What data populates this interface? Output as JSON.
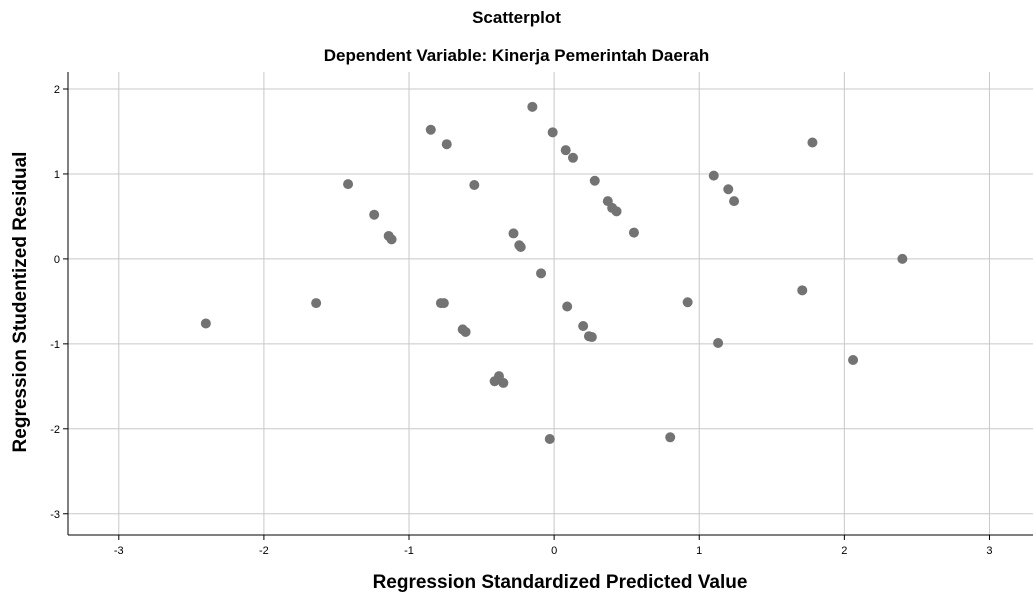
{
  "chart_data": {
    "type": "scatter",
    "title": "Scatterplot",
    "subtitle": "Dependent Variable: Kinerja Pemerintah Daerah",
    "xlabel": "Regression Standardized Predicted Value",
    "ylabel": "Regression Studentized Residual",
    "xlim": [
      -3.35,
      3.3
    ],
    "ylim": [
      -3.25,
      2.2
    ],
    "xticks": [
      -3,
      -2,
      -1,
      0,
      1,
      2,
      3
    ],
    "yticks": [
      -3,
      -2,
      -1,
      0,
      1,
      2
    ],
    "grid": true,
    "colors": {
      "point": "#737373",
      "grid": "#c8c8c8",
      "axis": "#000000"
    },
    "points": [
      {
        "x": -2.4,
        "y": -0.76
      },
      {
        "x": -1.64,
        "y": -0.52
      },
      {
        "x": -1.42,
        "y": 0.88
      },
      {
        "x": -1.24,
        "y": 0.52
      },
      {
        "x": -1.14,
        "y": 0.27
      },
      {
        "x": -1.12,
        "y": 0.23
      },
      {
        "x": -0.85,
        "y": 1.52
      },
      {
        "x": -0.78,
        "y": -0.52
      },
      {
        "x": -0.76,
        "y": -0.52
      },
      {
        "x": -0.74,
        "y": 1.35
      },
      {
        "x": -0.63,
        "y": -0.83
      },
      {
        "x": -0.61,
        "y": -0.86
      },
      {
        "x": -0.55,
        "y": 0.87
      },
      {
        "x": -0.41,
        "y": -1.44
      },
      {
        "x": -0.38,
        "y": -1.38
      },
      {
        "x": -0.35,
        "y": -1.46
      },
      {
        "x": -0.28,
        "y": 0.3
      },
      {
        "x": -0.24,
        "y": 0.16
      },
      {
        "x": -0.23,
        "y": 0.14
      },
      {
        "x": -0.15,
        "y": 1.79
      },
      {
        "x": -0.09,
        "y": -0.17
      },
      {
        "x": -0.03,
        "y": -2.12
      },
      {
        "x": -0.01,
        "y": 1.49
      },
      {
        "x": 0.08,
        "y": 1.28
      },
      {
        "x": 0.09,
        "y": -0.56
      },
      {
        "x": 0.13,
        "y": 1.19
      },
      {
        "x": 0.2,
        "y": -0.79
      },
      {
        "x": 0.24,
        "y": -0.91
      },
      {
        "x": 0.26,
        "y": -0.92
      },
      {
        "x": 0.28,
        "y": 0.92
      },
      {
        "x": 0.37,
        "y": 0.68
      },
      {
        "x": 0.4,
        "y": 0.6
      },
      {
        "x": 0.43,
        "y": 0.56
      },
      {
        "x": 0.55,
        "y": 0.31
      },
      {
        "x": 0.8,
        "y": -2.1
      },
      {
        "x": 0.92,
        "y": -0.51
      },
      {
        "x": 1.1,
        "y": 0.98
      },
      {
        "x": 1.13,
        "y": -0.99
      },
      {
        "x": 1.2,
        "y": 0.82
      },
      {
        "x": 1.24,
        "y": 0.68
      },
      {
        "x": 1.71,
        "y": -0.37
      },
      {
        "x": 1.78,
        "y": 1.37
      },
      {
        "x": 2.06,
        "y": -1.19
      },
      {
        "x": 2.4,
        "y": 0.0
      }
    ]
  }
}
